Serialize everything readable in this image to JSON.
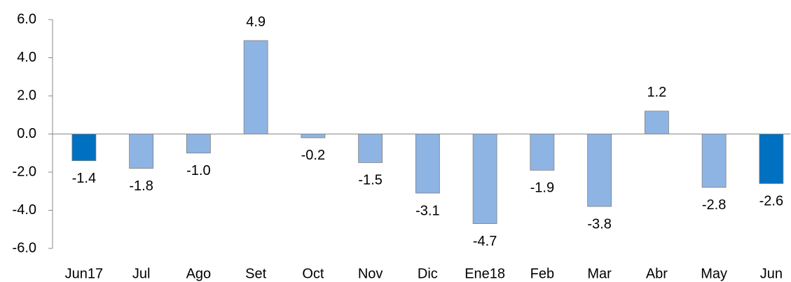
{
  "chart_data": {
    "type": "bar",
    "categories": [
      "Jun17",
      "Jul",
      "Ago",
      "Set",
      "Oct",
      "Nov",
      "Dic",
      "Ene18",
      "Feb",
      "Mar",
      "Abr",
      "May",
      "Jun"
    ],
    "values": [
      -1.4,
      -1.8,
      -1.0,
      4.9,
      -0.2,
      -1.5,
      -3.1,
      -4.7,
      -1.9,
      -3.8,
      1.2,
      -2.8,
      -2.6
    ],
    "value_labels": [
      "-1.4",
      "-1.8",
      "-1.0",
      "4.9",
      "-0.2",
      "-1.5",
      "-3.1",
      "-4.7",
      "-1.9",
      "-3.8",
      "1.2",
      "-2.8",
      "-2.6"
    ],
    "colors": [
      "#0070c0",
      "#8eb4e3",
      "#8eb4e3",
      "#8eb4e3",
      "#8eb4e3",
      "#8eb4e3",
      "#8eb4e3",
      "#8eb4e3",
      "#8eb4e3",
      "#8eb4e3",
      "#8eb4e3",
      "#8eb4e3",
      "#0070c0"
    ],
    "ylim": [
      -6,
      6
    ],
    "yticks": [
      {
        "value": -6,
        "label": "-6.0"
      },
      {
        "value": -4,
        "label": "-4.0"
      },
      {
        "value": -2,
        "label": "-2.0"
      },
      {
        "value": 0,
        "label": "0.0"
      },
      {
        "value": 2,
        "label": "2.0"
      },
      {
        "value": 4,
        "label": "4.0"
      },
      {
        "value": 6,
        "label": "6.0"
      }
    ],
    "grid": false
  }
}
